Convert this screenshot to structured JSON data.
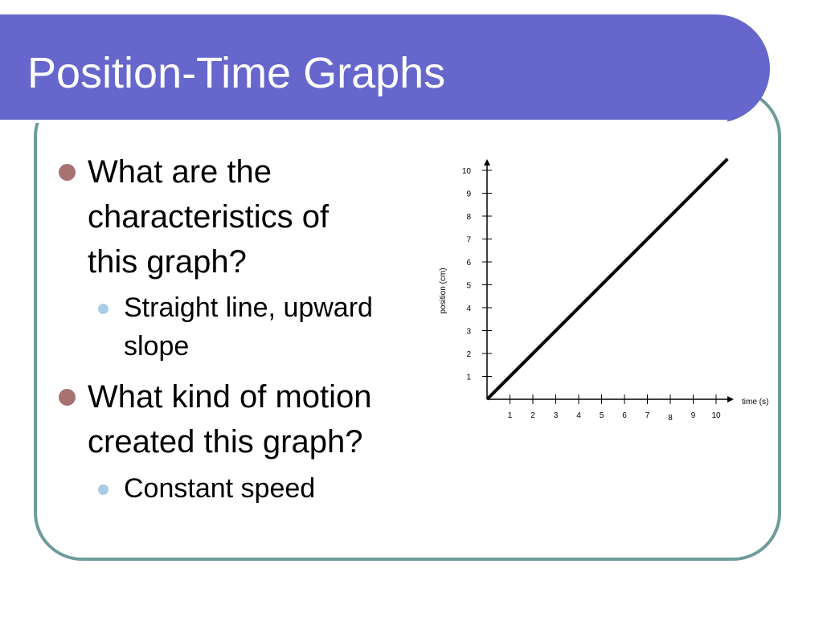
{
  "slide": {
    "title": "Position-Time Graphs"
  },
  "bullets": [
    {
      "level": 1,
      "lines": [
        "What are the",
        "characteristics of",
        "this graph?"
      ],
      "sub": [
        {
          "lines": [
            "Straight line, upward",
            "slope"
          ]
        }
      ]
    },
    {
      "level": 1,
      "lines": [
        "What kind of motion",
        "created this graph?"
      ],
      "sub": [
        {
          "lines": [
            "Constant speed"
          ]
        }
      ]
    }
  ],
  "colors": {
    "title_bar": "#6666cc",
    "frame_border": "#6d9c9a",
    "bullet_primary": "#a87272",
    "bullet_secondary": "#a9cde6"
  },
  "chart_data": {
    "type": "line",
    "xlabel": "time (s)",
    "ylabel": "position (cm)",
    "xlim": [
      0,
      10.5
    ],
    "ylim": [
      0,
      10.5
    ],
    "x_ticks": [
      1,
      2,
      3,
      4,
      5,
      6,
      7,
      8,
      9,
      10
    ],
    "y_ticks": [
      1,
      2,
      3,
      4,
      5,
      6,
      7,
      8,
      9,
      10
    ],
    "grid": false,
    "series": [
      {
        "x": [
          0,
          10.5
        ],
        "y": [
          0,
          10.5
        ]
      }
    ]
  }
}
